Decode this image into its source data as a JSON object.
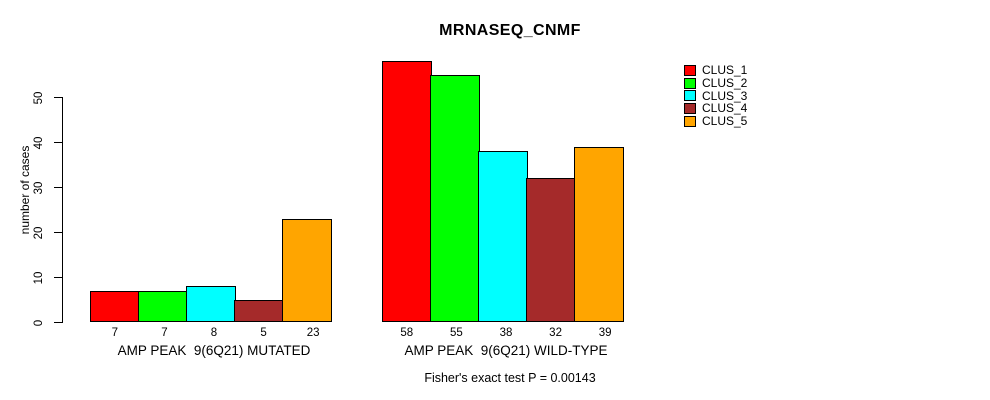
{
  "title": "MRNASEQ_CNMF",
  "footer": "Fisher's exact test P = 0.00143",
  "colors": {
    "background": "#FFFFFF",
    "axis": "#000000",
    "text": "#000000",
    "clus_1": "#FF0000",
    "clus_2": "#00FF00",
    "clus_3": "#00FFFF",
    "clus_4": "#A52A2A",
    "clus_5": "#FFA500"
  },
  "chart_data": {
    "type": "bar",
    "title": "MRNASEQ_CNMF",
    "ylabel": "number of cases",
    "xlabel": "",
    "categories": [
      "AMP PEAK  9(6Q21) MUTATED",
      "AMP PEAK  9(6Q21) WILD-TYPE"
    ],
    "series": [
      {
        "name": "CLUS_1",
        "color": "#FF0000",
        "values": [
          7,
          58
        ]
      },
      {
        "name": "CLUS_2",
        "color": "#00FF00",
        "values": [
          7,
          55
        ]
      },
      {
        "name": "CLUS_3",
        "color": "#00FFFF",
        "values": [
          8,
          38
        ]
      },
      {
        "name": "CLUS_4",
        "color": "#A52A2A",
        "values": [
          5,
          32
        ]
      },
      {
        "name": "CLUS_5",
        "color": "#FFA500",
        "values": [
          23,
          39
        ]
      }
    ],
    "bar_value_labels": [
      [
        "7",
        "7",
        "8",
        "5",
        "23"
      ],
      [
        "58",
        "55",
        "38",
        "32",
        "39"
      ]
    ],
    "yticks": [
      "0",
      "10",
      "20",
      "30",
      "40",
      "50"
    ],
    "ylim": [
      0,
      58
    ],
    "grid": false,
    "legend_position": "right",
    "annotation": "Fisher's exact test P = 0.00143"
  }
}
